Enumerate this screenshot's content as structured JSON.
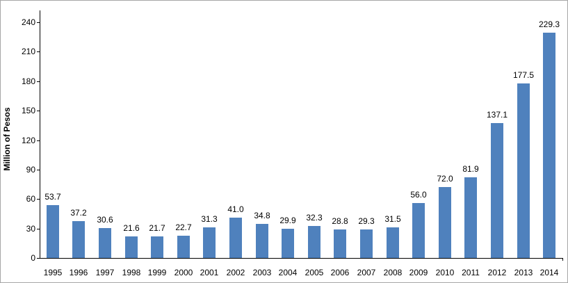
{
  "chart_data": {
    "type": "bar",
    "title": "",
    "xlabel": "",
    "ylabel": "Million of Pesos",
    "categories": [
      "1995",
      "1996",
      "1997",
      "1998",
      "1999",
      "2000",
      "2001",
      "2002",
      "2003",
      "2004",
      "2005",
      "2006",
      "2007",
      "2008",
      "2009",
      "2010",
      "2011",
      "2012",
      "2013",
      "2014"
    ],
    "values": [
      53.7,
      37.2,
      30.6,
      21.6,
      21.7,
      22.7,
      31.3,
      41.0,
      34.8,
      29.9,
      32.3,
      28.8,
      29.3,
      31.5,
      56.0,
      72.0,
      81.9,
      137.1,
      177.5,
      229.3
    ],
    "value_labels": [
      "53.7",
      "37.2",
      "30.6",
      "21.6",
      "21.7",
      "22.7",
      "31.3",
      "41.0",
      "34.8",
      "29.9",
      "32.3",
      "28.8",
      "29.3",
      "31.5",
      "56.0",
      "72.0",
      "81.9",
      "137.1",
      "177.5",
      "229.3"
    ],
    "y_ticks": [
      0,
      30,
      60,
      90,
      120,
      150,
      180,
      210,
      240
    ],
    "ylim": [
      0,
      240
    ],
    "grid": false,
    "legend": false,
    "bar_color": "#4f81bd"
  }
}
